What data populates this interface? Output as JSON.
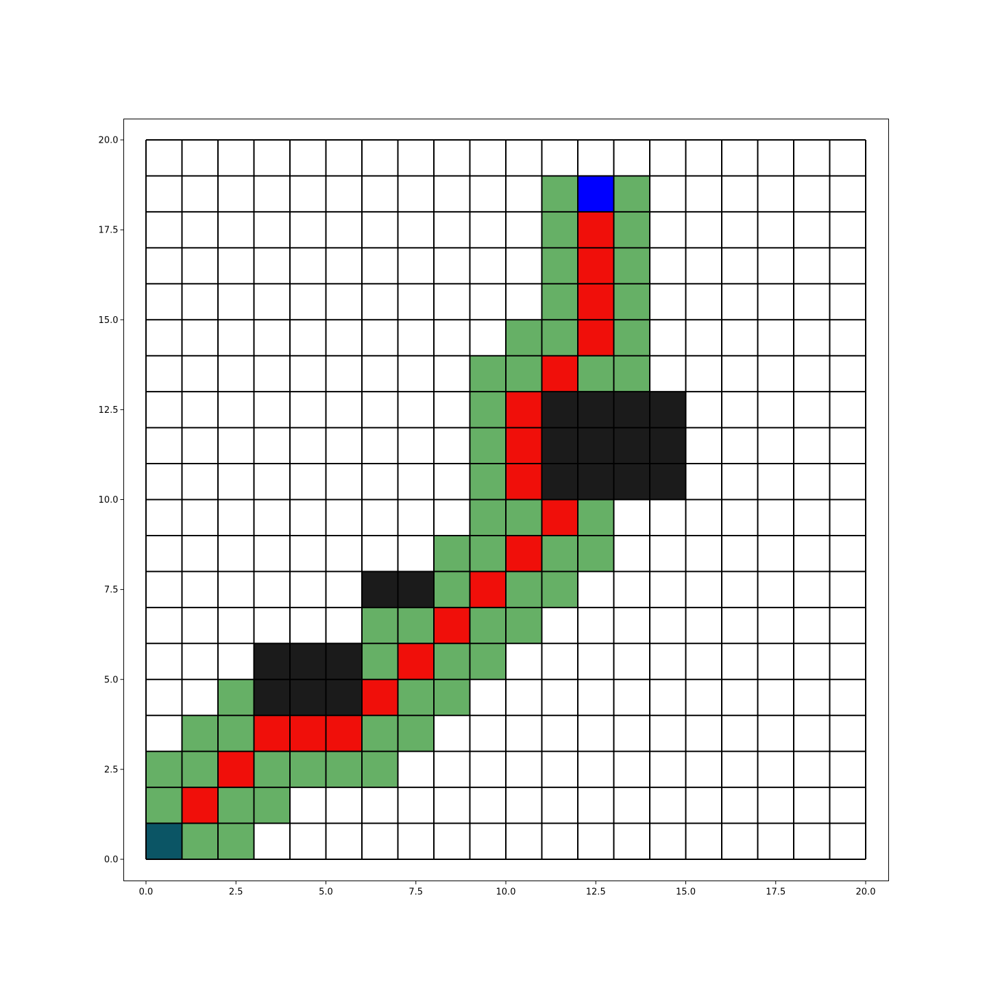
{
  "chart_data": {
    "type": "heatmap",
    "title": "",
    "xlabel": "",
    "ylabel": "",
    "xlim": [
      0,
      20
    ],
    "ylim": [
      0,
      20
    ],
    "grid_size": [
      20,
      20
    ],
    "x_ticks": [
      "0.0",
      "2.5",
      "5.0",
      "7.5",
      "10.0",
      "12.5",
      "15.0",
      "17.5",
      "20.0"
    ],
    "y_ticks": [
      "0.0",
      "2.5",
      "5.0",
      "7.5",
      "10.0",
      "12.5",
      "15.0",
      "17.5",
      "20.0"
    ],
    "colors": {
      "empty": "#ffffff",
      "explored": "#66b066",
      "path": "#f00f0a",
      "obstacle": "#1b1b1b",
      "start": "#0b5565",
      "goal": "#0000ff",
      "gridline": "#000000"
    },
    "cells": {
      "start": [
        [
          0,
          0
        ]
      ],
      "goal": [
        [
          12,
          18
        ]
      ],
      "path": [
        [
          1,
          1
        ],
        [
          2,
          2
        ],
        [
          3,
          3
        ],
        [
          4,
          3
        ],
        [
          5,
          3
        ],
        [
          6,
          4
        ],
        [
          7,
          5
        ],
        [
          8,
          6
        ],
        [
          9,
          7
        ],
        [
          10,
          8
        ],
        [
          11,
          9
        ],
        [
          10,
          10
        ],
        [
          10,
          11
        ],
        [
          10,
          12
        ],
        [
          11,
          13
        ],
        [
          12,
          14
        ],
        [
          12,
          15
        ],
        [
          12,
          16
        ],
        [
          12,
          17
        ]
      ],
      "obstacle": [
        [
          3,
          4
        ],
        [
          4,
          4
        ],
        [
          5,
          4
        ],
        [
          3,
          5
        ],
        [
          4,
          5
        ],
        [
          5,
          5
        ],
        [
          6,
          7
        ],
        [
          7,
          7
        ],
        [
          11,
          10
        ],
        [
          12,
          10
        ],
        [
          13,
          10
        ],
        [
          14,
          10
        ],
        [
          11,
          11
        ],
        [
          12,
          11
        ],
        [
          13,
          11
        ],
        [
          14,
          11
        ],
        [
          11,
          12
        ],
        [
          12,
          12
        ],
        [
          13,
          12
        ],
        [
          14,
          12
        ]
      ],
      "explored": [
        [
          1,
          0
        ],
        [
          2,
          0
        ],
        [
          0,
          1
        ],
        [
          2,
          1
        ],
        [
          3,
          1
        ],
        [
          0,
          2
        ],
        [
          1,
          2
        ],
        [
          3,
          2
        ],
        [
          4,
          2
        ],
        [
          5,
          2
        ],
        [
          6,
          2
        ],
        [
          1,
          3
        ],
        [
          2,
          3
        ],
        [
          6,
          3
        ],
        [
          7,
          3
        ],
        [
          2,
          4
        ],
        [
          7,
          4
        ],
        [
          8,
          4
        ],
        [
          6,
          5
        ],
        [
          8,
          5
        ],
        [
          9,
          5
        ],
        [
          6,
          6
        ],
        [
          7,
          6
        ],
        [
          9,
          6
        ],
        [
          10,
          6
        ],
        [
          8,
          7
        ],
        [
          10,
          7
        ],
        [
          11,
          7
        ],
        [
          8,
          8
        ],
        [
          9,
          8
        ],
        [
          11,
          8
        ],
        [
          12,
          8
        ],
        [
          9,
          9
        ],
        [
          10,
          9
        ],
        [
          12,
          9
        ],
        [
          9,
          10
        ],
        [
          9,
          11
        ],
        [
          9,
          12
        ],
        [
          9,
          13
        ],
        [
          10,
          13
        ],
        [
          12,
          13
        ],
        [
          13,
          13
        ],
        [
          10,
          14
        ],
        [
          11,
          14
        ],
        [
          13,
          14
        ],
        [
          11,
          15
        ],
        [
          13,
          15
        ],
        [
          11,
          16
        ],
        [
          13,
          16
        ],
        [
          11,
          17
        ],
        [
          13,
          17
        ],
        [
          11,
          18
        ],
        [
          13,
          18
        ]
      ]
    }
  }
}
